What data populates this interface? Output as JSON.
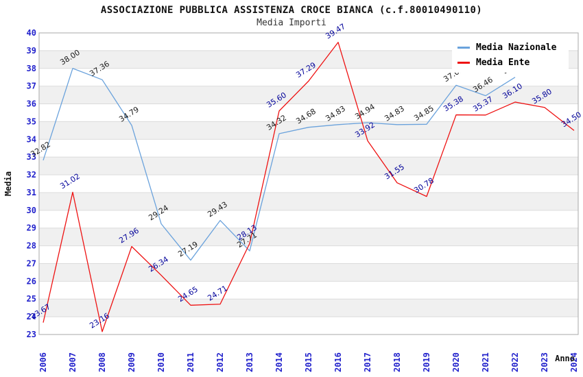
{
  "colors": {
    "background": "#FFFFFF",
    "band_gray": "#F0F0F0",
    "gridline": "#DBDBDB",
    "frame": "#A8A8A8",
    "axis_tick_text": "#2222CC",
    "title_text": "#111111",
    "nazionale_line": "#6AA2DC",
    "ente_line": "#EE1111",
    "nazionale_label_text": "#1A1A1A",
    "ente_label_text": "#000099"
  },
  "legend": {
    "items": [
      {
        "label": "Media Nazionale",
        "color": "#6AA2DC"
      },
      {
        "label": "Media Ente",
        "color": "#EE1111"
      }
    ]
  },
  "chart_data": {
    "type": "line",
    "title": "ASSOCIAZIONE PUBBLICA ASSISTENZA CROCE BIANCA (c.f.80010490110)",
    "subtitle": "Media Importi",
    "xlabel": "Anno",
    "ylabel": "Media",
    "ylim": [
      23,
      40
    ],
    "ytick_step": 1,
    "yticks": [
      40,
      39,
      38,
      37,
      36,
      35,
      34,
      33,
      32,
      31,
      30,
      29,
      28,
      27,
      26,
      25,
      24,
      23
    ],
    "grid": "horizontal gridlines with alternating white/light-gray unit bands",
    "legend_position": "top-right",
    "categories": [
      "2006",
      "2007",
      "2008",
      "2009",
      "2010",
      "2011",
      "2012",
      "2013",
      "2014",
      "2015",
      "2016",
      "2017",
      "2018",
      "2019",
      "2020",
      "2021",
      "2022",
      "2023",
      "2024"
    ],
    "series": [
      {
        "name": "Media Nazionale",
        "color": "#6AA2DC",
        "label_color": "#1A1A1A",
        "values": [
          32.82,
          38.0,
          37.36,
          34.79,
          29.24,
          27.19,
          29.43,
          27.71,
          34.32,
          34.68,
          34.83,
          34.94,
          34.83,
          34.85,
          37.05,
          36.46,
          37.5,
          null,
          null
        ],
        "note": "2022 data label partially hidden behind the legend box; series ends at 2022"
      },
      {
        "name": "Media Ente",
        "color": "#EE1111",
        "label_color": "#000099",
        "values": [
          23.67,
          31.02,
          23.16,
          27.96,
          26.34,
          24.65,
          24.71,
          28.13,
          35.6,
          37.29,
          39.47,
          33.92,
          31.55,
          30.78,
          35.38,
          35.37,
          36.1,
          35.8,
          34.5
        ]
      }
    ]
  }
}
